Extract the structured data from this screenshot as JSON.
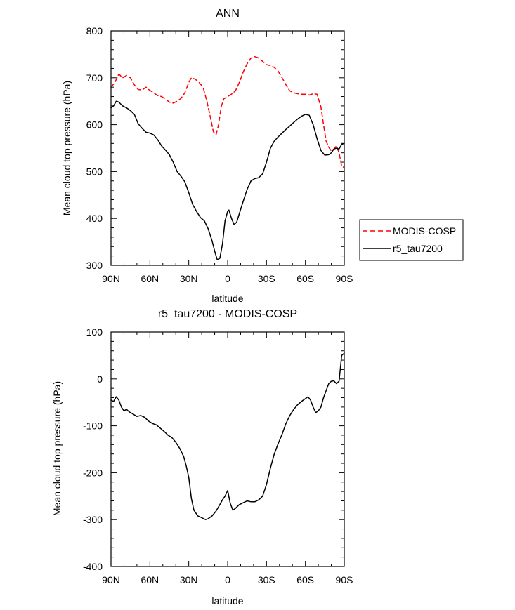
{
  "chart_data": [
    {
      "type": "line",
      "title": "ANN",
      "xlabel": "latitude",
      "ylabel": "Mean cloud top pressure (hPa)",
      "xlim": [
        -90,
        90
      ],
      "ylim": [
        300,
        800
      ],
      "x_ticks": [
        -90,
        -60,
        -30,
        0,
        30,
        60,
        90
      ],
      "x_tick_labels": [
        "90N",
        "60N",
        "30N",
        "0",
        "30S",
        "60S",
        "90S"
      ],
      "y_ticks": [
        300,
        400,
        500,
        600,
        700,
        800
      ],
      "y_tick_labels": [
        "300",
        "400",
        "500",
        "600",
        "700",
        "800"
      ],
      "grid": false,
      "legend_position": "outside-right",
      "series": [
        {
          "name": "MODIS-COSP",
          "color": "#ff0000",
          "dash": "dashed",
          "points": [
            [
              -90,
              680
            ],
            [
              -87,
              690
            ],
            [
              -84,
              708
            ],
            [
              -81,
              700
            ],
            [
              -78,
              705
            ],
            [
              -75,
              700
            ],
            [
              -72,
              685
            ],
            [
              -69,
              675
            ],
            [
              -66,
              674
            ],
            [
              -63,
              680
            ],
            [
              -60,
              673
            ],
            [
              -57,
              668
            ],
            [
              -54,
              662
            ],
            [
              -51,
              660
            ],
            [
              -48,
              655
            ],
            [
              -45,
              648
            ],
            [
              -42,
              646
            ],
            [
              -39,
              650
            ],
            [
              -36,
              656
            ],
            [
              -33,
              668
            ],
            [
              -30,
              690
            ],
            [
              -28,
              700
            ],
            [
              -25,
              697
            ],
            [
              -22,
              690
            ],
            [
              -19,
              680
            ],
            [
              -16,
              650
            ],
            [
              -13,
              612
            ],
            [
              -11,
              585
            ],
            [
              -9,
              578
            ],
            [
              -7,
              600
            ],
            [
              -5,
              638
            ],
            [
              -3,
              655
            ],
            [
              0,
              660
            ],
            [
              3,
              665
            ],
            [
              6,
              672
            ],
            [
              9,
              690
            ],
            [
              12,
              712
            ],
            [
              15,
              730
            ],
            [
              18,
              742
            ],
            [
              21,
              745
            ],
            [
              24,
              742
            ],
            [
              27,
              735
            ],
            [
              30,
              728
            ],
            [
              33,
              726
            ],
            [
              36,
              722
            ],
            [
              39,
              714
            ],
            [
              42,
              700
            ],
            [
              45,
              685
            ],
            [
              48,
              672
            ],
            [
              51,
              668
            ],
            [
              54,
              666
            ],
            [
              57,
              665
            ],
            [
              60,
              665
            ],
            [
              63,
              663
            ],
            [
              66,
              666
            ],
            [
              69,
              665
            ],
            [
              72,
              638
            ],
            [
              74,
              600
            ],
            [
              76,
              565
            ],
            [
              78,
              552
            ],
            [
              80,
              544
            ],
            [
              82,
              548
            ],
            [
              84,
              555
            ],
            [
              86,
              540
            ],
            [
              88,
              512
            ],
            [
              90,
              508
            ]
          ]
        },
        {
          "name": "r5_tau7200",
          "color": "#000000",
          "dash": "solid",
          "points": [
            [
              -90,
              636
            ],
            [
              -88,
              640
            ],
            [
              -86,
              650
            ],
            [
              -84,
              648
            ],
            [
              -81,
              640
            ],
            [
              -78,
              636
            ],
            [
              -75,
              630
            ],
            [
              -72,
              622
            ],
            [
              -69,
              602
            ],
            [
              -66,
              592
            ],
            [
              -63,
              584
            ],
            [
              -60,
              582
            ],
            [
              -57,
              578
            ],
            [
              -54,
              568
            ],
            [
              -51,
              555
            ],
            [
              -48,
              546
            ],
            [
              -45,
              536
            ],
            [
              -42,
              520
            ],
            [
              -39,
              500
            ],
            [
              -36,
              490
            ],
            [
              -33,
              478
            ],
            [
              -30,
              455
            ],
            [
              -27,
              430
            ],
            [
              -24,
              415
            ],
            [
              -21,
              402
            ],
            [
              -18,
              395
            ],
            [
              -15,
              378
            ],
            [
              -12,
              352
            ],
            [
              -10,
              330
            ],
            [
              -8,
              312
            ],
            [
              -6,
              315
            ],
            [
              -4,
              345
            ],
            [
              -2,
              395
            ],
            [
              0,
              415
            ],
            [
              1,
              418
            ],
            [
              3,
              400
            ],
            [
              5,
              387
            ],
            [
              7,
              392
            ],
            [
              9,
              410
            ],
            [
              11,
              428
            ],
            [
              13,
              445
            ],
            [
              15,
              462
            ],
            [
              18,
              480
            ],
            [
              21,
              485
            ],
            [
              24,
              487
            ],
            [
              27,
              495
            ],
            [
              30,
              520
            ],
            [
              33,
              550
            ],
            [
              36,
              565
            ],
            [
              39,
              574
            ],
            [
              42,
              582
            ],
            [
              45,
              590
            ],
            [
              48,
              597
            ],
            [
              51,
              605
            ],
            [
              54,
              612
            ],
            [
              57,
              618
            ],
            [
              60,
              622
            ],
            [
              63,
              620
            ],
            [
              66,
              600
            ],
            [
              69,
              570
            ],
            [
              72,
              545
            ],
            [
              75,
              535
            ],
            [
              78,
              536
            ],
            [
              80,
              540
            ],
            [
              82,
              548
            ],
            [
              84,
              550
            ],
            [
              86,
              548
            ],
            [
              88,
              558
            ],
            [
              90,
              560
            ]
          ]
        }
      ]
    },
    {
      "type": "line",
      "title": "r5_tau7200 - MODIS-COSP",
      "xlabel": "latitude",
      "ylabel": "Mean cloud top pressure (hPa)",
      "xlim": [
        -90,
        90
      ],
      "ylim": [
        -400,
        100
      ],
      "x_ticks": [
        -90,
        -60,
        -30,
        0,
        30,
        60,
        90
      ],
      "x_tick_labels": [
        "90N",
        "60N",
        "30N",
        "0",
        "30S",
        "60S",
        "90S"
      ],
      "y_ticks": [
        -400,
        -300,
        -200,
        -100,
        0,
        100
      ],
      "y_tick_labels": [
        "-400",
        "-300",
        "-200",
        "-100",
        "0",
        "100"
      ],
      "grid": false,
      "legend_position": "none",
      "series": [
        {
          "color": "#000000",
          "dash": "solid",
          "points": [
            [
              -90,
              -45
            ],
            [
              -88,
              -48
            ],
            [
              -86,
              -38
            ],
            [
              -84,
              -45
            ],
            [
              -82,
              -60
            ],
            [
              -80,
              -68
            ],
            [
              -78,
              -65
            ],
            [
              -76,
              -70
            ],
            [
              -73,
              -75
            ],
            [
              -70,
              -80
            ],
            [
              -67,
              -78
            ],
            [
              -64,
              -82
            ],
            [
              -61,
              -90
            ],
            [
              -58,
              -95
            ],
            [
              -55,
              -98
            ],
            [
              -52,
              -105
            ],
            [
              -49,
              -112
            ],
            [
              -46,
              -120
            ],
            [
              -43,
              -125
            ],
            [
              -40,
              -135
            ],
            [
              -37,
              -148
            ],
            [
              -34,
              -165
            ],
            [
              -32,
              -185
            ],
            [
              -30,
              -210
            ],
            [
              -28,
              -255
            ],
            [
              -26,
              -280
            ],
            [
              -23,
              -292
            ],
            [
              -20,
              -296
            ],
            [
              -17,
              -300
            ],
            [
              -15,
              -298
            ],
            [
              -12,
              -292
            ],
            [
              -9,
              -282
            ],
            [
              -6,
              -268
            ],
            [
              -4,
              -258
            ],
            [
              -2,
              -250
            ],
            [
              0,
              -238
            ],
            [
              2,
              -265
            ],
            [
              4,
              -280
            ],
            [
              6,
              -276
            ],
            [
              9,
              -268
            ],
            [
              12,
              -264
            ],
            [
              15,
              -260
            ],
            [
              18,
              -262
            ],
            [
              21,
              -262
            ],
            [
              24,
              -258
            ],
            [
              27,
              -250
            ],
            [
              30,
              -225
            ],
            [
              33,
              -190
            ],
            [
              36,
              -160
            ],
            [
              39,
              -138
            ],
            [
              42,
              -118
            ],
            [
              45,
              -95
            ],
            [
              48,
              -78
            ],
            [
              51,
              -65
            ],
            [
              54,
              -55
            ],
            [
              57,
              -48
            ],
            [
              60,
              -42
            ],
            [
              62,
              -38
            ],
            [
              64,
              -45
            ],
            [
              66,
              -60
            ],
            [
              68,
              -72
            ],
            [
              70,
              -68
            ],
            [
              72,
              -60
            ],
            [
              74,
              -40
            ],
            [
              76,
              -25
            ],
            [
              78,
              -10
            ],
            [
              80,
              -5
            ],
            [
              82,
              -4
            ],
            [
              84,
              -10
            ],
            [
              86,
              -5
            ],
            [
              88,
              50
            ],
            [
              90,
              55
            ]
          ]
        }
      ]
    }
  ]
}
